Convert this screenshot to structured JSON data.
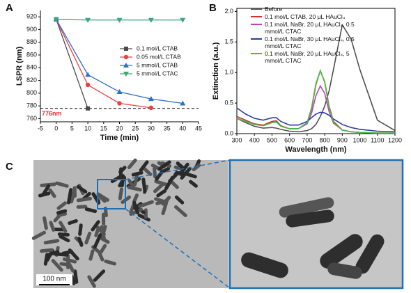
{
  "chart_data": [
    {
      "type": "line",
      "panel_label": "A",
      "x_label": "Time (min)",
      "y_label": "LSPR (nm)",
      "xlim": [
        -5,
        45
      ],
      "xticks": [
        -5,
        0,
        5,
        10,
        15,
        20,
        25,
        30,
        35,
        40,
        45
      ],
      "ylim": [
        755,
        930
      ],
      "yticks": [
        760,
        780,
        800,
        820,
        840,
        860,
        880,
        900,
        920
      ],
      "reference_line": {
        "value": 776,
        "label": "776nm",
        "color": "#e03030"
      },
      "series": [
        {
          "name": "0.1 mol/L CTAB",
          "color": "#4a4a4a",
          "marker": "square",
          "x": [
            0,
            10
          ],
          "values": [
            916,
            776
          ]
        },
        {
          "name": "0.05 mol/L CTAB",
          "color": "#e84040",
          "marker": "circle",
          "x": [
            0,
            10,
            20,
            30
          ],
          "values": [
            916,
            813,
            784,
            777
          ]
        },
        {
          "name": "5 mmol/L CTAB",
          "color": "#2f6fc4",
          "marker": "triangle",
          "x": [
            0,
            10,
            20,
            30,
            40
          ],
          "values": [
            916,
            829,
            802,
            791,
            784
          ]
        },
        {
          "name": "5 mmol/L CTAC",
          "color": "#3aa87a",
          "marker": "triangle-down",
          "x": [
            0,
            10,
            20,
            30,
            40
          ],
          "values": [
            916,
            915,
            915,
            915,
            915
          ]
        }
      ]
    },
    {
      "type": "line",
      "panel_label": "B",
      "x_label": "Wavelength (nm)",
      "y_label": "Extinction (a.u.)",
      "xlim": [
        300,
        1200
      ],
      "xticks": [
        300,
        400,
        500,
        600,
        700,
        800,
        900,
        1000,
        1100,
        1200
      ],
      "ylim": [
        0,
        2.05
      ],
      "yticks": [
        {
          "value": 0,
          "label": "0.0"
        },
        0.5,
        {
          "value": 1,
          "label": "1.0"
        },
        1.5,
        {
          "value": 2,
          "label": "2.0"
        }
      ],
      "series": [
        {
          "name": "Before",
          "color": "#505050",
          "x": [
            300,
            350,
            400,
            450,
            500,
            525,
            550,
            600,
            650,
            700,
            725,
            750,
            775,
            800,
            825,
            850,
            900,
            950,
            1000,
            1100,
            1200
          ],
          "values": [
            0.25,
            0.18,
            0.12,
            0.09,
            0.1,
            0.09,
            0.07,
            0.04,
            0.03,
            0.05,
            0.08,
            0.15,
            0.28,
            0.45,
            0.7,
            1.05,
            1.78,
            1.55,
            1.05,
            0.22,
            0.05
          ]
        },
        {
          "name": "0.1 mol/L CTAB, 20 μL HAuCl₄",
          "color": "#d03030",
          "x": [
            300,
            350,
            400,
            450,
            500,
            525,
            550,
            600,
            650,
            700,
            725,
            750,
            775,
            800,
            825,
            850,
            900,
            950,
            1000,
            1100,
            1200
          ],
          "values": [
            0.28,
            0.22,
            0.16,
            0.14,
            0.2,
            0.21,
            0.13,
            0.08,
            0.08,
            0.18,
            0.4,
            0.8,
            1.03,
            0.85,
            0.45,
            0.2,
            0.06,
            0.03,
            0.02,
            0.01,
            0.01
          ]
        },
        {
          "name": "0.1 mol/L NaBr, 20 μL HAuCl₄, 0.5 mmol/L CTAC",
          "color": "#c040c0",
          "x": [
            300,
            350,
            400,
            450,
            500,
            525,
            550,
            600,
            650,
            700,
            725,
            750,
            775,
            800,
            825,
            850,
            900,
            950,
            1000,
            1100,
            1200
          ],
          "values": [
            0.25,
            0.2,
            0.15,
            0.13,
            0.18,
            0.19,
            0.12,
            0.08,
            0.08,
            0.16,
            0.33,
            0.62,
            0.78,
            0.66,
            0.36,
            0.17,
            0.06,
            0.03,
            0.02,
            0.01,
            0.01
          ]
        },
        {
          "name": "0.1 mol/L NaBr, 30 μL HAuCl₄, 0.5 mmol/L CTAC",
          "color": "#2c3aa0",
          "x": [
            300,
            350,
            400,
            450,
            500,
            525,
            550,
            600,
            650,
            700,
            725,
            750,
            775,
            800,
            825,
            850,
            900,
            950,
            1000,
            1100,
            1200
          ],
          "values": [
            0.42,
            0.32,
            0.25,
            0.22,
            0.26,
            0.26,
            0.2,
            0.14,
            0.14,
            0.2,
            0.26,
            0.32,
            0.35,
            0.34,
            0.3,
            0.24,
            0.15,
            0.1,
            0.07,
            0.04,
            0.03
          ]
        },
        {
          "name": "0.1 mol/L NaBr, 20 μL HAuCl₄, 5 mmol/L CTAC",
          "color": "#40c040",
          "x": [
            300,
            350,
            400,
            450,
            500,
            525,
            550,
            600,
            650,
            700,
            725,
            750,
            775,
            800,
            825,
            850,
            900,
            950,
            1000,
            1100,
            1200
          ],
          "values": [
            0.25,
            0.2,
            0.15,
            0.13,
            0.18,
            0.19,
            0.12,
            0.08,
            0.08,
            0.18,
            0.42,
            0.82,
            1.03,
            0.84,
            0.43,
            0.18,
            0.06,
            0.03,
            0.02,
            0.01,
            0.01
          ]
        }
      ]
    }
  ],
  "panel_c": {
    "label": "C",
    "scale_bar": "100 nm"
  }
}
